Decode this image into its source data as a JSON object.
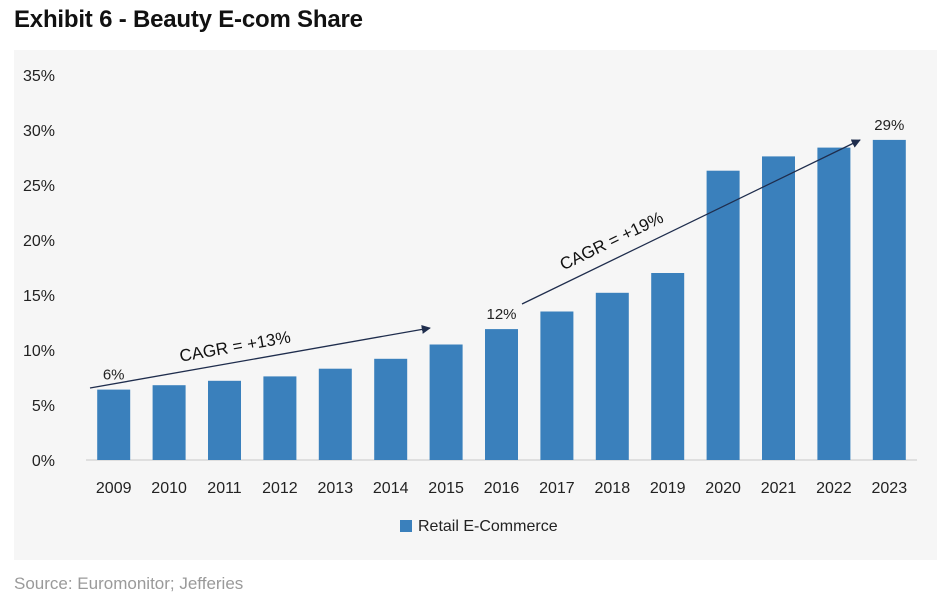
{
  "title": "Exhibit 6 - Beauty E-com Share",
  "source": "Source: Euromonitor; Jefferies",
  "chart_data": {
    "type": "bar",
    "categories": [
      "2009",
      "2010",
      "2011",
      "2012",
      "2013",
      "2014",
      "2015",
      "2016",
      "2017",
      "2018",
      "2019",
      "2020",
      "2021",
      "2022",
      "2023"
    ],
    "series": [
      {
        "name": "Retail E-Commerce",
        "values": [
          6.4,
          6.8,
          7.2,
          7.6,
          8.3,
          9.2,
          10.5,
          11.9,
          13.5,
          15.2,
          17.0,
          26.3,
          27.6,
          28.4,
          29.1
        ],
        "color": "#3a80bc"
      }
    ],
    "ylim": [
      0,
      35
    ],
    "yticks": [
      "0%",
      "5%",
      "10%",
      "15%",
      "20%",
      "25%",
      "30%",
      "35%"
    ],
    "ytick_values": [
      0,
      5,
      10,
      15,
      20,
      25,
      30,
      35
    ],
    "grid": false,
    "legend": "bottom-center",
    "data_labels": [
      {
        "category": "2009",
        "text": "6%"
      },
      {
        "category": "2016",
        "text": "12%"
      },
      {
        "category": "2023",
        "text": "29%"
      }
    ],
    "annotations": [
      {
        "text": "CAGR = +13%",
        "from_category": "2009",
        "to_category": "2015"
      },
      {
        "text": "CAGR =  +19%",
        "from_category": "2016",
        "to_category": "2023"
      }
    ],
    "arrow_color": "#1f2d4d"
  }
}
